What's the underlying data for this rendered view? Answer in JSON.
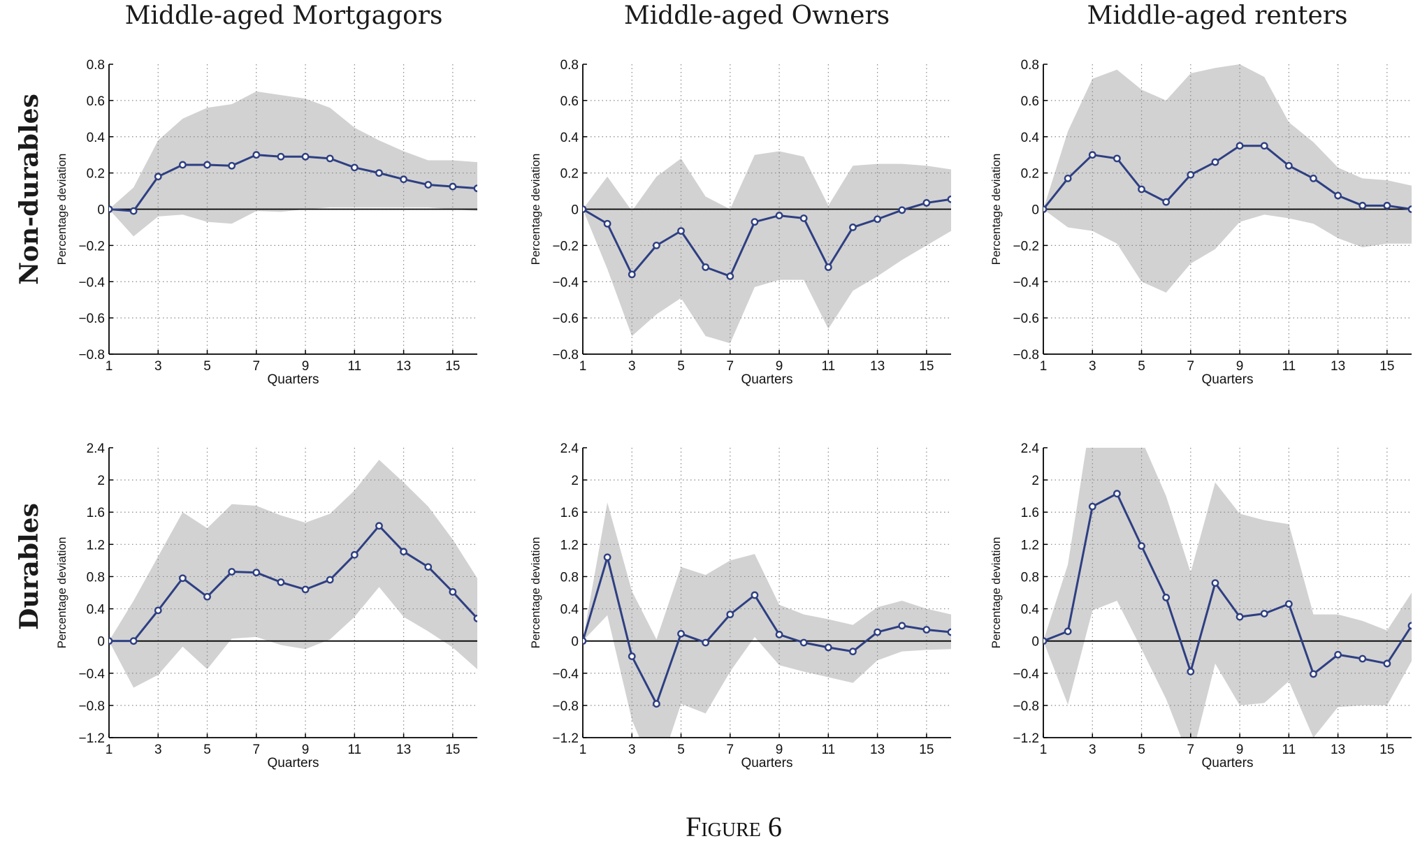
{
  "columns": [
    "Middle-aged Mortgagors",
    "Middle-aged Owners",
    "Middle-aged renters"
  ],
  "rows": [
    "Non-durables",
    "Durables"
  ],
  "caption": "Figure 6",
  "colors": {
    "line": "#2e3f82",
    "band": "#d2d2d2",
    "zero": "#000000",
    "grid": "#888888"
  },
  "chart_data": [
    {
      "type": "line",
      "row": "Non-durables",
      "column": "Middle-aged Mortgagors",
      "xlabel": "Quarters",
      "ylabel": "Percentage deviation",
      "xlim": [
        1,
        16
      ],
      "ylim": [
        -0.8,
        0.8
      ],
      "xticks": [
        1,
        3,
        5,
        7,
        9,
        11,
        13,
        15
      ],
      "yticks": [
        -0.8,
        -0.6,
        -0.4,
        -0.2,
        0,
        0.2,
        0.4,
        0.6,
        0.8
      ],
      "yticklabels": [
        "−0.8",
        "−0.6",
        "−0.4",
        "−0.2",
        "0",
        "0.2",
        "0.4",
        "0.6",
        "0.8"
      ],
      "x": [
        1,
        2,
        3,
        4,
        5,
        6,
        7,
        8,
        9,
        10,
        11,
        12,
        13,
        14,
        15,
        16
      ],
      "series": [
        {
          "values": [
            0,
            -0.01,
            0.18,
            0.245,
            0.245,
            0.24,
            0.3,
            0.29,
            0.29,
            0.28,
            0.23,
            0.2,
            0.165,
            0.135,
            0.125,
            0.115
          ]
        }
      ],
      "band_upper": [
        0,
        0.12,
        0.38,
        0.5,
        0.56,
        0.58,
        0.65,
        0.63,
        0.61,
        0.56,
        0.45,
        0.38,
        0.32,
        0.27,
        0.27,
        0.26
      ],
      "band_lower": [
        0,
        -0.15,
        -0.04,
        -0.03,
        -0.07,
        -0.08,
        -0.01,
        -0.015,
        0,
        0.01,
        0.01,
        0.01,
        0.01,
        0.01,
        0,
        -0.01
      ],
      "grid": true
    },
    {
      "type": "line",
      "row": "Non-durables",
      "column": "Middle-aged Owners",
      "xlabel": "Quarters",
      "ylabel": "Percentage deviation",
      "xlim": [
        1,
        16
      ],
      "ylim": [
        -0.8,
        0.8
      ],
      "xticks": [
        1,
        3,
        5,
        7,
        9,
        11,
        13,
        15
      ],
      "yticks": [
        -0.8,
        -0.6,
        -0.4,
        -0.2,
        0,
        0.2,
        0.4,
        0.6,
        0.8
      ],
      "yticklabels": [
        "−0.8",
        "−0.6",
        "−0.4",
        "−0.2",
        "0",
        "0.2",
        "0.4",
        "0.6",
        "0.8"
      ],
      "x": [
        1,
        2,
        3,
        4,
        5,
        6,
        7,
        8,
        9,
        10,
        11,
        12,
        13,
        14,
        15,
        16
      ],
      "series": [
        {
          "values": [
            0,
            -0.08,
            -0.36,
            -0.2,
            -0.12,
            -0.32,
            -0.37,
            -0.07,
            -0.035,
            -0.05,
            -0.32,
            -0.1,
            -0.055,
            -0.005,
            0.035,
            0.055
          ]
        }
      ],
      "band_upper": [
        0,
        0.18,
        -0.01,
        0.18,
        0.28,
        0.07,
        0.0,
        0.3,
        0.32,
        0.29,
        0.02,
        0.24,
        0.25,
        0.25,
        0.24,
        0.22
      ],
      "band_lower": [
        0,
        -0.33,
        -0.7,
        -0.58,
        -0.49,
        -0.7,
        -0.74,
        -0.43,
        -0.39,
        -0.39,
        -0.66,
        -0.45,
        -0.37,
        -0.28,
        -0.2,
        -0.12
      ],
      "grid": true
    },
    {
      "type": "line",
      "row": "Non-durables",
      "column": "Middle-aged renters",
      "xlabel": "Quarters",
      "ylabel": "Percentage deviation",
      "xlim": [
        1,
        16
      ],
      "ylim": [
        -0.8,
        0.8
      ],
      "xticks": [
        1,
        3,
        5,
        7,
        9,
        11,
        13,
        15
      ],
      "yticks": [
        -0.8,
        -0.6,
        -0.4,
        -0.2,
        0,
        0.2,
        0.4,
        0.6,
        0.8
      ],
      "yticklabels": [
        "−0.8",
        "−0.6",
        "−0.4",
        "−0.2",
        "0",
        "0.2",
        "0.4",
        "0.6",
        "0.8"
      ],
      "x": [
        1,
        2,
        3,
        4,
        5,
        6,
        7,
        8,
        9,
        10,
        11,
        12,
        13,
        14,
        15,
        16
      ],
      "series": [
        {
          "values": [
            0,
            0.17,
            0.3,
            0.28,
            0.11,
            0.04,
            0.19,
            0.26,
            0.35,
            0.35,
            0.24,
            0.17,
            0.075,
            0.02,
            0.02,
            0.0
          ]
        }
      ],
      "band_upper": [
        0,
        0.43,
        0.72,
        0.77,
        0.66,
        0.6,
        0.75,
        0.78,
        0.8,
        0.73,
        0.48,
        0.37,
        0.23,
        0.17,
        0.16,
        0.13
      ],
      "band_lower": [
        0,
        -0.1,
        -0.12,
        -0.19,
        -0.4,
        -0.46,
        -0.3,
        -0.22,
        -0.07,
        -0.03,
        -0.05,
        -0.08,
        -0.16,
        -0.21,
        -0.19,
        -0.19
      ],
      "grid": true
    },
    {
      "type": "line",
      "row": "Durables",
      "column": "Middle-aged Mortgagors",
      "xlabel": "Quarters",
      "ylabel": "Percentage deviation",
      "xlim": [
        1,
        16
      ],
      "ylim": [
        -1.2,
        2.4
      ],
      "xticks": [
        1,
        3,
        5,
        7,
        9,
        11,
        13,
        15
      ],
      "yticks": [
        -1.2,
        -0.8,
        -0.4,
        0,
        0.4,
        0.8,
        1.2,
        1.6,
        2,
        2.4
      ],
      "yticklabels": [
        "−1.2",
        "−0.8",
        "−0.4",
        "0",
        "0.4",
        "0.8",
        "1.2",
        "1.6",
        "2",
        "2.4"
      ],
      "x": [
        1,
        2,
        3,
        4,
        5,
        6,
        7,
        8,
        9,
        10,
        11,
        12,
        13,
        14,
        15,
        16
      ],
      "series": [
        {
          "values": [
            0,
            0,
            0.38,
            0.78,
            0.55,
            0.86,
            0.85,
            0.73,
            0.64,
            0.76,
            1.07,
            1.43,
            1.11,
            0.92,
            0.61,
            0.28
          ]
        }
      ],
      "band_upper": [
        0,
        0.5,
        1.05,
        1.6,
        1.4,
        1.7,
        1.68,
        1.56,
        1.47,
        1.58,
        1.87,
        2.25,
        1.97,
        1.67,
        1.26,
        0.78
      ],
      "band_lower": [
        0,
        -0.58,
        -0.42,
        -0.07,
        -0.35,
        0.03,
        0.05,
        -0.05,
        -0.1,
        0.02,
        0.3,
        0.67,
        0.3,
        0.12,
        -0.08,
        -0.35
      ],
      "grid": true
    },
    {
      "type": "line",
      "row": "Durables",
      "column": "Middle-aged Owners",
      "xlabel": "Quarters",
      "ylabel": "Percentage deviation",
      "xlim": [
        1,
        16
      ],
      "ylim": [
        -1.2,
        2.4
      ],
      "xticks": [
        1,
        3,
        5,
        7,
        9,
        11,
        13,
        15
      ],
      "yticks": [
        -1.2,
        -0.8,
        -0.4,
        0,
        0.4,
        0.8,
        1.2,
        1.6,
        2,
        2.4
      ],
      "yticklabels": [
        "−1.2",
        "−0.8",
        "−0.4",
        "0",
        "0.4",
        "0.8",
        "1.2",
        "1.6",
        "2",
        "2.4"
      ],
      "x": [
        1,
        2,
        3,
        4,
        5,
        6,
        7,
        8,
        9,
        10,
        11,
        12,
        13,
        14,
        15,
        16
      ],
      "series": [
        {
          "values": [
            0,
            1.04,
            -0.19,
            -0.78,
            0.09,
            -0.02,
            0.33,
            0.57,
            0.08,
            -0.02,
            -0.08,
            -0.13,
            0.11,
            0.19,
            0.14,
            0.11
          ]
        }
      ],
      "band_upper": [
        0,
        1.72,
        0.62,
        0.02,
        0.92,
        0.82,
        1.0,
        1.08,
        0.45,
        0.33,
        0.27,
        0.2,
        0.42,
        0.5,
        0.4,
        0.33
      ],
      "band_lower": [
        0,
        0.32,
        -0.98,
        -1.7,
        -0.78,
        -0.9,
        -0.38,
        0.05,
        -0.3,
        -0.38,
        -0.45,
        -0.52,
        -0.24,
        -0.13,
        -0.11,
        -0.1
      ],
      "grid": true
    },
    {
      "type": "line",
      "row": "Durables",
      "column": "Middle-aged renters",
      "xlabel": "Quarters",
      "ylabel": "Percentage deviation",
      "xlim": [
        1,
        16
      ],
      "ylim": [
        -1.2,
        2.4
      ],
      "xticks": [
        1,
        3,
        5,
        7,
        9,
        11,
        13,
        15
      ],
      "yticks": [
        -1.2,
        -0.8,
        -0.4,
        0,
        0.4,
        0.8,
        1.2,
        1.6,
        2,
        2.4
      ],
      "yticklabels": [
        "−1.2",
        "−0.8",
        "−0.4",
        "0",
        "0.4",
        "0.8",
        "1.2",
        "1.6",
        "2",
        "2.4"
      ],
      "x": [
        1,
        2,
        3,
        4,
        5,
        6,
        7,
        8,
        9,
        10,
        11,
        12,
        13,
        14,
        15,
        16
      ],
      "series": [
        {
          "values": [
            0,
            0.12,
            1.67,
            1.83,
            1.18,
            0.54,
            -0.38,
            0.72,
            0.3,
            0.34,
            0.46,
            -0.41,
            -0.17,
            -0.22,
            -0.28,
            0.19
          ]
        }
      ],
      "band_upper": [
        0,
        0.95,
        2.9,
        3.1,
        2.5,
        1.8,
        0.85,
        1.97,
        1.58,
        1.5,
        1.45,
        0.33,
        0.33,
        0.25,
        0.13,
        0.6
      ],
      "band_lower": [
        0,
        -0.79,
        0.38,
        0.5,
        -0.1,
        -0.72,
        -1.5,
        -0.28,
        -0.8,
        -0.77,
        -0.5,
        -1.2,
        -0.82,
        -0.8,
        -0.8,
        -0.25
      ],
      "grid": true
    }
  ]
}
